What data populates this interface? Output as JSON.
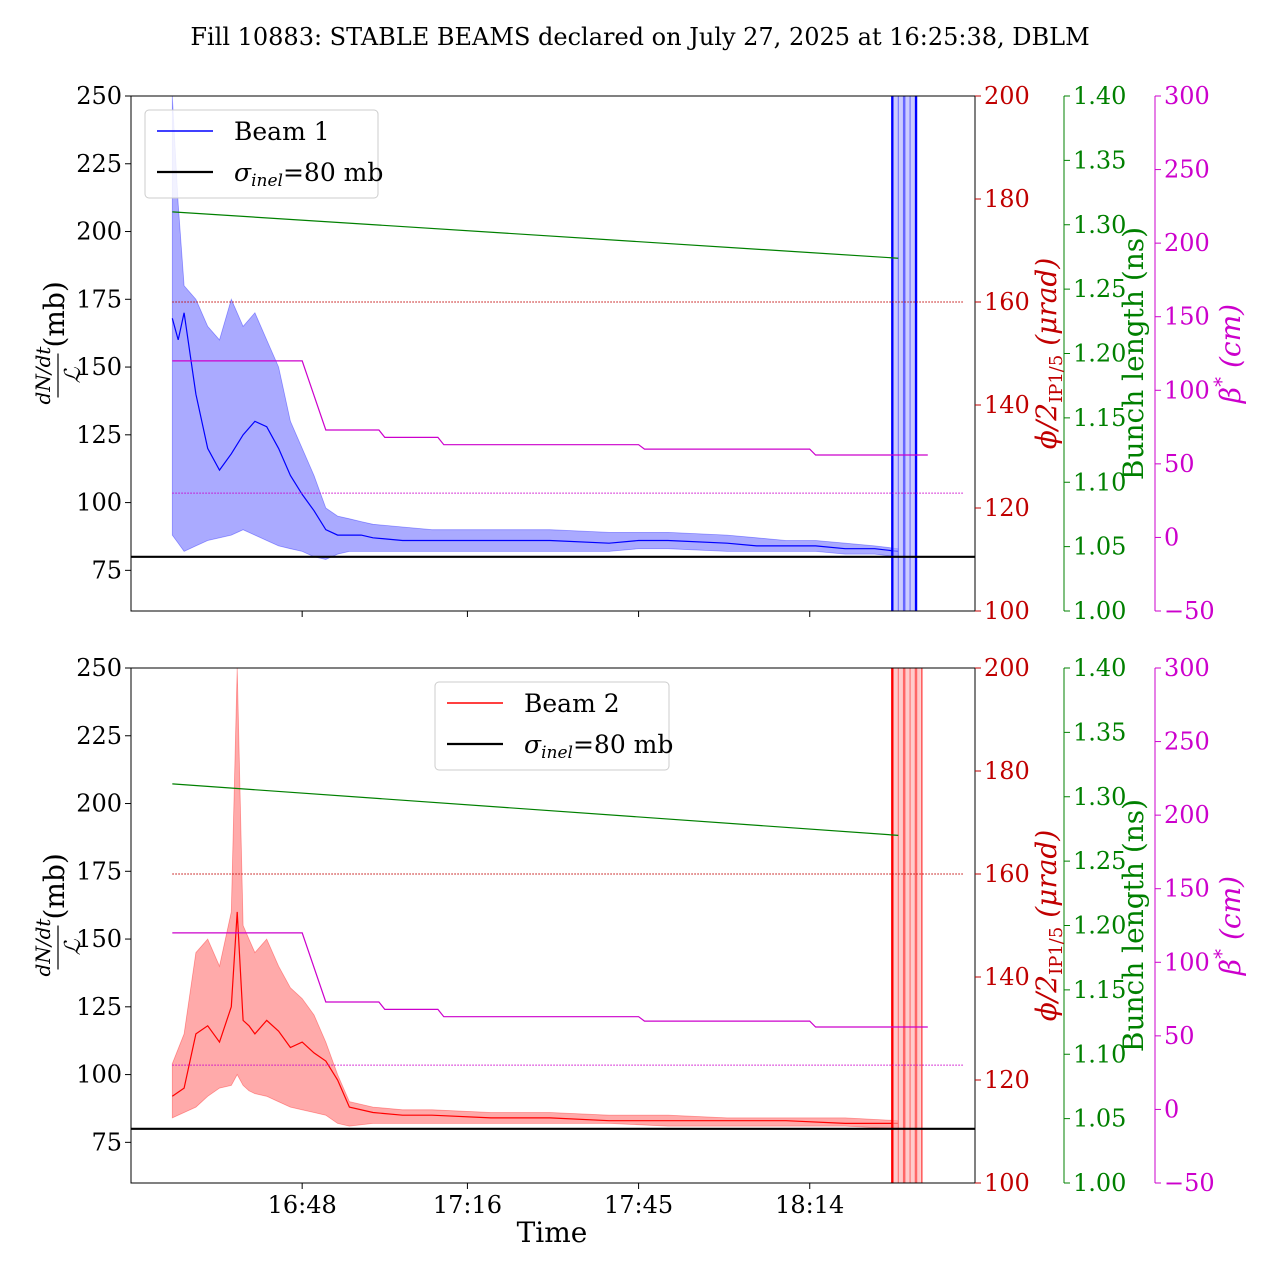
{
  "title": "Fill 10883: STABLE BEAMS declared on July 27, 2025 at 16:25:38, DBLM",
  "xlabel": "Time",
  "colors": {
    "beam1": "#0000ff",
    "beam1_band": "#aaaaff",
    "beam2": "#ff0000",
    "beam2_band": "#ffaaaa",
    "crossing_angle": "#c00000",
    "bunch_length": "#008000",
    "beta_star": "#cc00cc",
    "sigma": "#000000"
  },
  "axes_labels": {
    "left": "dN/dt / ℒ (mb)",
    "left_num": "dN/dt",
    "left_den": "ℒ",
    "left_unit": "(mb)",
    "right1": "ϕ/2IP1/5 (μrad)",
    "right1_main": "ϕ/2",
    "right1_sub": "IP1/5",
    "right1_unit": " (μrad)",
    "right2": "Bunch length (ns)",
    "right3": "β* (cm)",
    "right3_main": "β",
    "right3_sup": "*",
    "right3_unit": " (cm)"
  },
  "ticks": {
    "x": [
      "16:48",
      "17:16",
      "17:45",
      "18:14"
    ],
    "left": [
      "75",
      "100",
      "125",
      "150",
      "175",
      "200",
      "225",
      "250"
    ],
    "right1": [
      "100",
      "120",
      "140",
      "160",
      "180",
      "200"
    ],
    "right2": [
      "1.00",
      "1.05",
      "1.10",
      "1.15",
      "1.20",
      "1.25",
      "1.30",
      "1.35",
      "1.40"
    ],
    "right3": [
      "−50",
      "0",
      "50",
      "100",
      "150",
      "200",
      "250",
      "300"
    ]
  },
  "legend": {
    "beam1": "Beam 1",
    "beam2": "Beam 2",
    "sigma_symbol": "σ",
    "sigma_sub": "inel",
    "sigma_value": "=80 mb"
  },
  "chart_data": [
    {
      "type": "line",
      "panel": "Beam 1",
      "x_unit": "time",
      "xlim": [
        "16:19",
        "18:42"
      ],
      "x_ticks": [
        "16:48",
        "17:16",
        "17:45",
        "18:14"
      ],
      "ylim_left": [
        60,
        250
      ],
      "ylim_crossing_angle": [
        100,
        200
      ],
      "ylim_bunch_length": [
        1.0,
        1.4
      ],
      "ylim_beta_star": [
        -50,
        300
      ],
      "series": [
        {
          "name": "Beam 1",
          "axis": "left",
          "x": [
            "16:26",
            "16:27",
            "16:28",
            "16:30",
            "16:32",
            "16:34",
            "16:36",
            "16:38",
            "16:40",
            "16:42",
            "16:44",
            "16:46",
            "16:48",
            "16:50",
            "16:52",
            "16:54",
            "16:56",
            "16:58",
            "17:00",
            "17:05",
            "17:10",
            "17:20",
            "17:30",
            "17:40",
            "17:45",
            "17:50",
            "18:00",
            "18:05",
            "18:10",
            "18:15",
            "18:20",
            "18:25",
            "18:29"
          ],
          "y": [
            168,
            160,
            170,
            140,
            120,
            112,
            118,
            125,
            130,
            128,
            120,
            110,
            103,
            97,
            90,
            88,
            88,
            88,
            87,
            86,
            86,
            86,
            86,
            85,
            86,
            86,
            85,
            84,
            84,
            84,
            83,
            83,
            82
          ],
          "band_low": [
            88,
            85,
            82,
            84,
            86,
            87,
            88,
            90,
            88,
            86,
            84,
            83,
            82,
            80,
            79,
            81,
            82,
            82,
            82,
            82,
            82,
            82,
            82,
            82,
            83,
            83,
            82,
            82,
            82,
            82,
            81,
            81,
            80
          ],
          "band_high": [
            250,
            210,
            180,
            175,
            165,
            160,
            175,
            165,
            170,
            160,
            150,
            130,
            120,
            110,
            98,
            95,
            94,
            93,
            92,
            91,
            90,
            90,
            90,
            89,
            89,
            89,
            88,
            87,
            86,
            86,
            85,
            84,
            83
          ]
        },
        {
          "name": "crossing angle",
          "axis": "crossing_angle",
          "x": [
            "16:26",
            "18:40"
          ],
          "y": [
            160,
            160
          ]
        },
        {
          "name": "crossing angle (dashed)",
          "axis": "left",
          "x": [
            "16:26",
            "18:40"
          ],
          "y": [
            103.5,
            103.5
          ]
        },
        {
          "name": "bunch length",
          "axis": "bunch_length",
          "x": [
            "16:26",
            "18:29"
          ],
          "y": [
            1.31,
            1.274
          ]
        },
        {
          "name": "beta star",
          "axis": "beta_star",
          "x": [
            "16:26",
            "16:48",
            "16:52",
            "17:01",
            "17:02",
            "17:11",
            "17:12",
            "17:45",
            "17:46",
            "18:14",
            "18:15",
            "18:34"
          ],
          "y": [
            120,
            120,
            73,
            73,
            68,
            68,
            63,
            63,
            60,
            60,
            56,
            56
          ]
        },
        {
          "name": "σinel=80 mb",
          "axis": "left",
          "x": [
            "16:19",
            "18:42"
          ],
          "y": [
            80,
            80
          ]
        }
      ],
      "spikes_x": [
        "18:28",
        "18:29",
        "18:30",
        "18:31",
        "18:32"
      ]
    },
    {
      "type": "line",
      "panel": "Beam 2",
      "x_unit": "time",
      "xlim": [
        "16:19",
        "18:42"
      ],
      "x_ticks": [
        "16:48",
        "17:16",
        "17:45",
        "18:14"
      ],
      "ylim_left": [
        60,
        250
      ],
      "ylim_crossing_angle": [
        100,
        200
      ],
      "ylim_bunch_length": [
        1.0,
        1.4
      ],
      "ylim_beta_star": [
        -50,
        300
      ],
      "series": [
        {
          "name": "Beam 2",
          "axis": "left",
          "x": [
            "16:26",
            "16:28",
            "16:30",
            "16:32",
            "16:34",
            "16:36",
            "16:37",
            "16:38",
            "16:39",
            "16:40",
            "16:42",
            "16:44",
            "16:46",
            "16:48",
            "16:50",
            "16:52",
            "16:54",
            "16:56",
            "17:00",
            "17:05",
            "17:10",
            "17:20",
            "17:30",
            "17:40",
            "17:50",
            "18:00",
            "18:10",
            "18:20",
            "18:29"
          ],
          "y": [
            92,
            95,
            115,
            118,
            112,
            125,
            160,
            120,
            118,
            115,
            120,
            116,
            110,
            112,
            108,
            105,
            98,
            88,
            86,
            85,
            85,
            84,
            84,
            83,
            83,
            83,
            83,
            82,
            82
          ],
          "band_low": [
            84,
            86,
            88,
            92,
            95,
            96,
            100,
            96,
            94,
            93,
            92,
            90,
            88,
            87,
            86,
            85,
            82,
            81,
            82,
            82,
            82,
            82,
            82,
            82,
            81,
            81,
            81,
            81,
            80
          ],
          "band_high": [
            104,
            115,
            145,
            150,
            140,
            160,
            250,
            155,
            150,
            145,
            150,
            140,
            132,
            128,
            122,
            112,
            100,
            90,
            88,
            87,
            87,
            86,
            86,
            85,
            85,
            84,
            84,
            84,
            83
          ]
        },
        {
          "name": "crossing angle",
          "axis": "crossing_angle",
          "x": [
            "16:26",
            "18:40"
          ],
          "y": [
            160,
            160
          ]
        },
        {
          "name": "crossing angle (dashed)",
          "axis": "left",
          "x": [
            "16:26",
            "18:40"
          ],
          "y": [
            103.5,
            103.5
          ]
        },
        {
          "name": "bunch length",
          "axis": "bunch_length",
          "x": [
            "16:26",
            "18:29"
          ],
          "y": [
            1.31,
            1.27
          ]
        },
        {
          "name": "beta star",
          "axis": "beta_star",
          "x": [
            "16:26",
            "16:48",
            "16:52",
            "17:01",
            "17:02",
            "17:11",
            "17:12",
            "17:45",
            "17:46",
            "18:14",
            "18:15",
            "18:34"
          ],
          "y": [
            120,
            120,
            73,
            73,
            68,
            68,
            63,
            63,
            60,
            60,
            56,
            56
          ]
        },
        {
          "name": "σinel=80 mb",
          "axis": "left",
          "x": [
            "16:19",
            "18:42"
          ],
          "y": [
            80,
            80
          ]
        }
      ],
      "spikes_x": [
        "18:28",
        "18:29",
        "18:30",
        "18:31",
        "18:32",
        "18:33"
      ]
    }
  ]
}
